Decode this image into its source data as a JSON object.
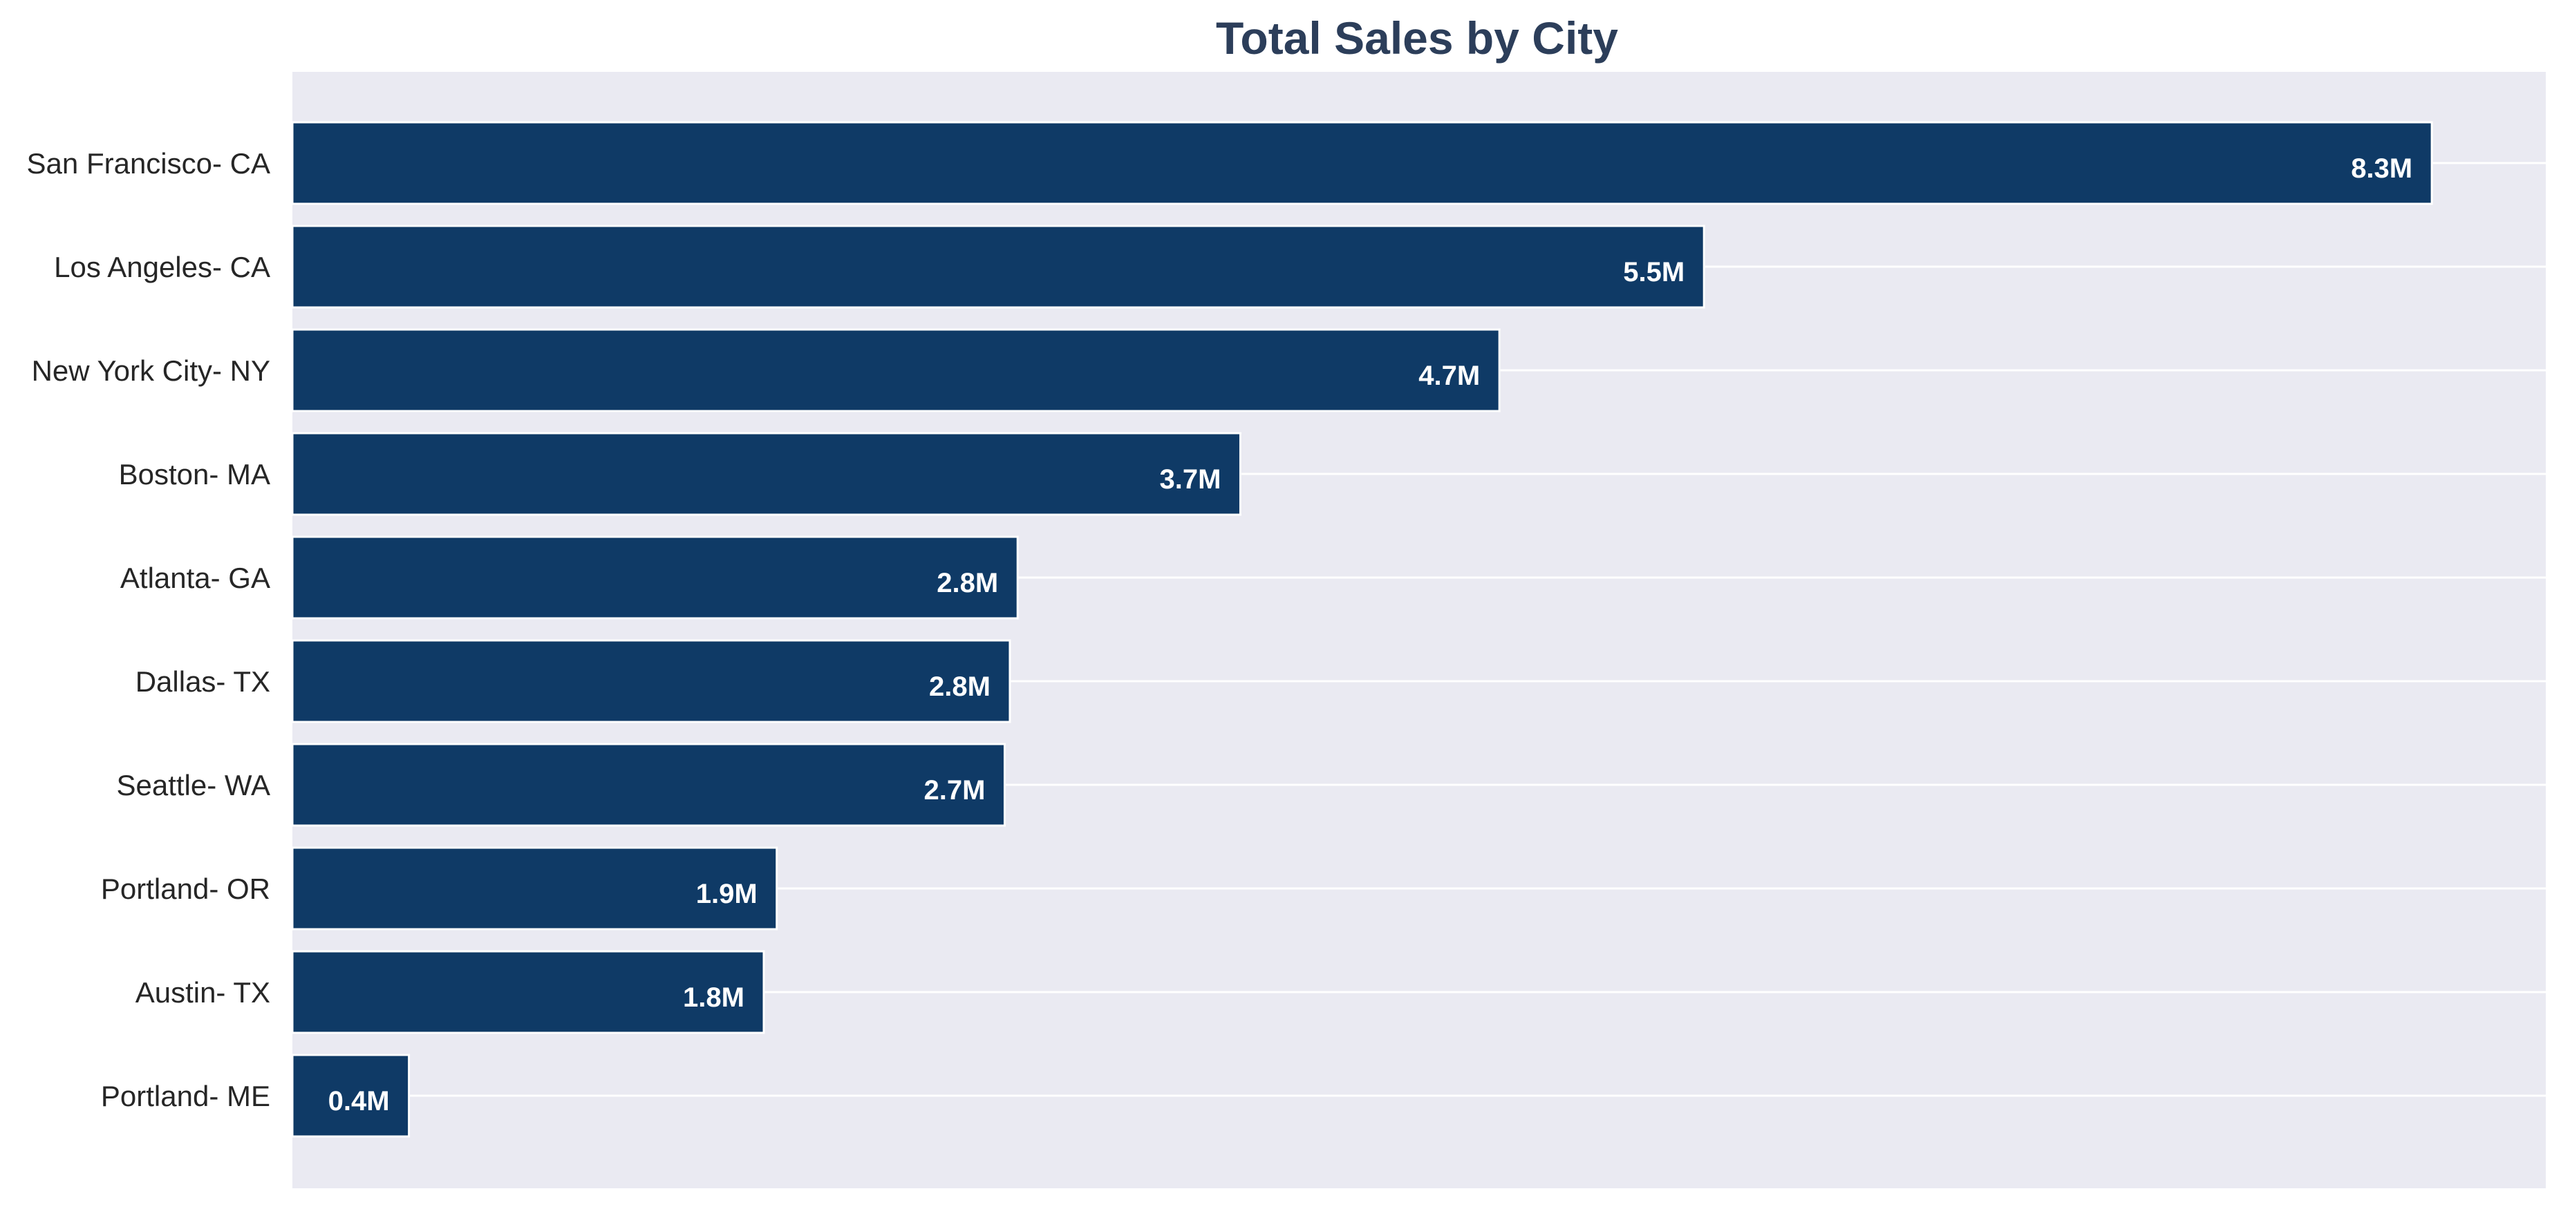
{
  "chart_data": {
    "type": "bar",
    "orientation": "horizontal",
    "title": "Total Sales by City",
    "xlabel": "",
    "ylabel": "",
    "categories": [
      "San Francisco- CA",
      "Los Angeles- CA",
      "New York City- NY",
      "Boston- MA",
      "Atlanta- GA",
      "Dallas- TX",
      "Seattle- WA",
      "Portland- OR",
      "Austin- TX",
      "Portland- ME"
    ],
    "values": [
      8.26,
      5.45,
      4.66,
      3.66,
      2.8,
      2.77,
      2.75,
      1.87,
      1.82,
      0.45
    ],
    "value_labels": [
      "8.3M",
      "5.5M",
      "4.7M",
      "3.7M",
      "2.8M",
      "2.8M",
      "2.7M",
      "1.9M",
      "1.8M",
      "0.4M"
    ],
    "value_unit": "M",
    "xlim": [
      0,
      8.7
    ],
    "grid": "horizontal",
    "legend": "none",
    "x_axis_ticks_visible": false,
    "colors": {
      "bar": "#0f3a66",
      "plot_background": "#eaeaf2",
      "grid": "#ffffff",
      "title": "#2c3e5a",
      "tick_label": "#262626",
      "bar_label": "#ffffff"
    }
  }
}
